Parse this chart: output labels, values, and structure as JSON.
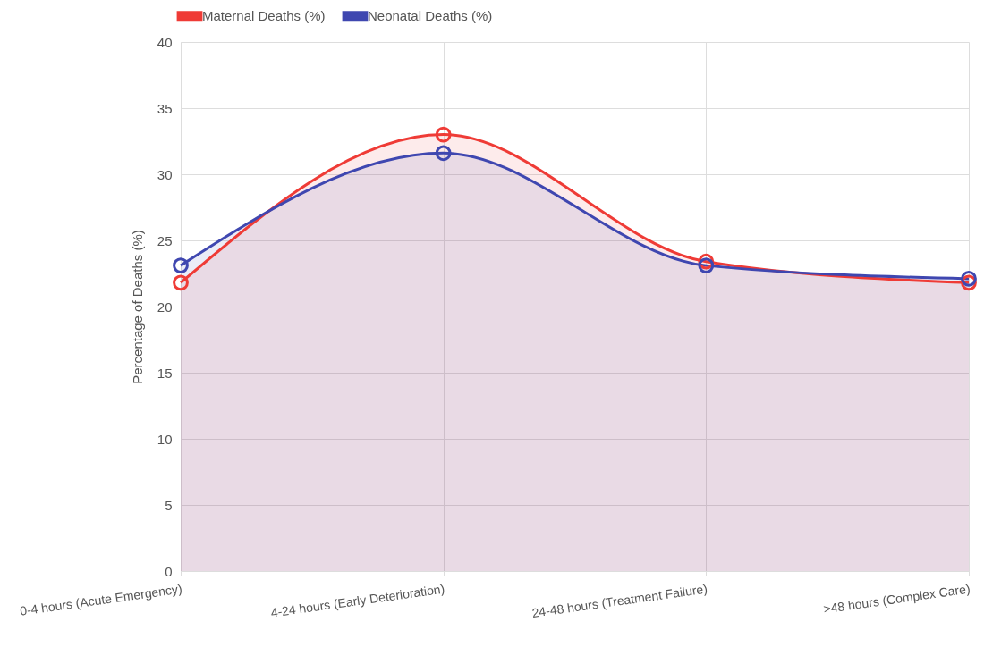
{
  "chart_data": {
    "type": "area",
    "ylabel": "Percentage of Deaths (%)",
    "categories": [
      "0-4 hours (Acute Emergency)",
      "4-24 hours (Early Deterioration)",
      "24-48 hours (Treatment Failure)",
      ">48 hours (Complex Care)"
    ],
    "series": [
      {
        "name": "Maternal Deaths (%)",
        "color": "#ef3b36",
        "values": [
          21.8,
          33.0,
          23.4,
          21.8
        ]
      },
      {
        "name": "Neonatal Deaths (%)",
        "color": "#3f47b0",
        "values": [
          23.1,
          31.6,
          23.1,
          22.1
        ]
      }
    ],
    "ylim": [
      0,
      40
    ],
    "yticks": [
      0,
      5,
      10,
      15,
      20,
      25,
      30,
      35,
      40
    ],
    "grid": true,
    "legend": "top",
    "marker": "circle",
    "line_style": "solid"
  }
}
